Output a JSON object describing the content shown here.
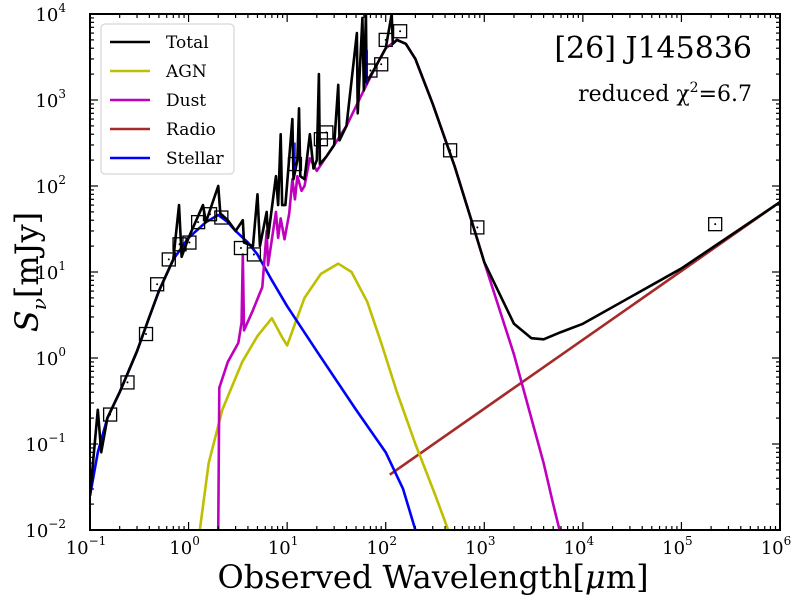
{
  "chart_data": {
    "type": "line",
    "title": "[26] J145836",
    "annotation_prefix": "reduced χ",
    "annotation_exponent": "2",
    "annotation_value": "=6.7",
    "xlabel_main": "Observed Wavelength[",
    "xlabel_mu": "μ",
    "xlabel_unit": "m]",
    "ylabel_main": "S",
    "ylabel_sub": "ν",
    "ylabel_unit": "[mJy]",
    "xscale": "log",
    "yscale": "log",
    "xlim": [
      0.1,
      1000000
    ],
    "ylim": [
      0.01,
      10000
    ],
    "legend_position": "top-left",
    "x_ticks": [
      {
        "value": 0.1,
        "base": "10",
        "exp": "−1"
      },
      {
        "value": 1,
        "base": "10",
        "exp": "0"
      },
      {
        "value": 10,
        "base": "10",
        "exp": "1"
      },
      {
        "value": 100,
        "base": "10",
        "exp": "2"
      },
      {
        "value": 1000,
        "base": "10",
        "exp": "3"
      },
      {
        "value": 10000,
        "base": "10",
        "exp": "4"
      },
      {
        "value": 100000,
        "base": "10",
        "exp": "5"
      },
      {
        "value": 1000000,
        "base": "10",
        "exp": "6"
      }
    ],
    "y_ticks": [
      {
        "value": 0.01,
        "base": "10",
        "exp": "−2"
      },
      {
        "value": 0.1,
        "base": "10",
        "exp": "−1"
      },
      {
        "value": 1,
        "base": "10",
        "exp": "0"
      },
      {
        "value": 10,
        "base": "10",
        "exp": "1"
      },
      {
        "value": 100,
        "base": "10",
        "exp": "2"
      },
      {
        "value": 1000,
        "base": "10",
        "exp": "3"
      },
      {
        "value": 10000,
        "base": "10",
        "exp": "4"
      }
    ],
    "series": [
      {
        "name": "Radio",
        "color": "#a52a2a",
        "points": [
          [
            110,
            0.044
          ],
          [
            1000000,
            65
          ]
        ]
      },
      {
        "name": "AGN",
        "color": "#bfbf00",
        "points": [
          [
            1.3,
            0.01
          ],
          [
            1.6,
            0.06
          ],
          [
            2.2,
            0.25
          ],
          [
            3.5,
            0.9
          ],
          [
            5,
            1.8
          ],
          [
            7,
            2.9
          ],
          [
            9,
            1.7
          ],
          [
            10,
            1.4
          ],
          [
            12,
            2.5
          ],
          [
            15,
            5
          ],
          [
            22,
            9.5
          ],
          [
            33,
            12.5
          ],
          [
            45,
            10
          ],
          [
            65,
            4.5
          ],
          [
            90,
            1.5
          ],
          [
            130,
            0.4
          ],
          [
            200,
            0.1
          ],
          [
            320,
            0.025
          ],
          [
            430,
            0.01
          ]
        ]
      },
      {
        "name": "Stellar",
        "color": "#0000ff",
        "points": [
          [
            0.1,
            0.025
          ],
          [
            0.12,
            0.08
          ],
          [
            0.15,
            0.2
          ],
          [
            0.2,
            0.4
          ],
          [
            0.3,
            1.2
          ],
          [
            0.4,
            3
          ],
          [
            0.5,
            6
          ],
          [
            0.7,
            14
          ],
          [
            1,
            25
          ],
          [
            1.5,
            38
          ],
          [
            2,
            46
          ],
          [
            2.5,
            38
          ],
          [
            3,
            30
          ],
          [
            4,
            22
          ],
          [
            5,
            16
          ],
          [
            7,
            8
          ],
          [
            10,
            4
          ],
          [
            20,
            1.2
          ],
          [
            50,
            0.25
          ],
          [
            100,
            0.08
          ],
          [
            150,
            0.03
          ],
          [
            200,
            0.01
          ]
        ]
      },
      {
        "name": "Dust",
        "color": "#bf00bf",
        "points": [
          [
            2,
            0.01
          ],
          [
            2.05,
            0.45
          ],
          [
            2.5,
            0.9
          ],
          [
            3.2,
            1.5
          ],
          [
            3.45,
            2.6
          ],
          [
            3.55,
            16
          ],
          [
            3.65,
            2.1
          ],
          [
            4.5,
            3.6
          ],
          [
            5.6,
            6.7
          ],
          [
            6.2,
            30
          ],
          [
            6.4,
            12
          ],
          [
            7.7,
            50
          ],
          [
            8.1,
            25
          ],
          [
            8.6,
            42
          ],
          [
            9.4,
            24
          ],
          [
            10.5,
            48
          ],
          [
            11.3,
            120
          ],
          [
            12,
            70
          ],
          [
            12.7,
            130
          ],
          [
            14,
            88
          ],
          [
            15,
            100
          ],
          [
            17,
            210
          ],
          [
            20,
            150
          ],
          [
            25,
            220
          ],
          [
            30,
            300
          ],
          [
            40,
            500
          ],
          [
            60,
            1300
          ],
          [
            80,
            2500
          ],
          [
            100,
            4000
          ],
          [
            130,
            5000
          ],
          [
            160,
            4500
          ],
          [
            200,
            3000
          ],
          [
            300,
            900
          ],
          [
            500,
            170
          ],
          [
            800,
            30
          ],
          [
            1000,
            13
          ],
          [
            2000,
            1.1
          ],
          [
            3000,
            0.2
          ],
          [
            4000,
            0.06
          ],
          [
            5000,
            0.02
          ],
          [
            5800,
            0.01
          ]
        ]
      },
      {
        "name": "Total",
        "color": "#000000",
        "points": [
          [
            0.1,
            0.025
          ],
          [
            0.12,
            0.25
          ],
          [
            0.13,
            0.08
          ],
          [
            0.15,
            0.2
          ],
          [
            0.2,
            0.4
          ],
          [
            0.3,
            1.2
          ],
          [
            0.4,
            3
          ],
          [
            0.5,
            6
          ],
          [
            0.7,
            14
          ],
          [
            0.8,
            60
          ],
          [
            0.85,
            15
          ],
          [
            1,
            25
          ],
          [
            1.4,
            60
          ],
          [
            1.5,
            38
          ],
          [
            2,
            100
          ],
          [
            2.1,
            48
          ],
          [
            2.5,
            40
          ],
          [
            3,
            30
          ],
          [
            3.55,
            40
          ],
          [
            3.65,
            22
          ],
          [
            4.5,
            20
          ],
          [
            5,
            80
          ],
          [
            5.3,
            20
          ],
          [
            6.2,
            50
          ],
          [
            6.4,
            25
          ],
          [
            7.7,
            130
          ],
          [
            8.1,
            60
          ],
          [
            8.6,
            400
          ],
          [
            8.9,
            60
          ],
          [
            9.6,
            60
          ],
          [
            11.3,
            600
          ],
          [
            11.6,
            120
          ],
          [
            12.7,
            200
          ],
          [
            13.2,
            800
          ],
          [
            13.6,
            130
          ],
          [
            15,
            120
          ],
          [
            17,
            400
          ],
          [
            18.5,
            160
          ],
          [
            20,
            200
          ],
          [
            21,
            2000
          ],
          [
            21.5,
            180
          ],
          [
            25,
            220
          ],
          [
            30,
            300
          ],
          [
            33,
            1500
          ],
          [
            34,
            340
          ],
          [
            40,
            500
          ],
          [
            51,
            6000
          ],
          [
            52,
            700
          ],
          [
            58,
            9000
          ],
          [
            60,
            1300
          ],
          [
            63,
            10000
          ],
          [
            64,
            1600
          ],
          [
            80,
            2500
          ],
          [
            100,
            4000
          ],
          [
            115,
            10000
          ],
          [
            118,
            4500
          ],
          [
            130,
            5000
          ],
          [
            160,
            4500
          ],
          [
            200,
            3000
          ],
          [
            300,
            900
          ],
          [
            500,
            170
          ],
          [
            800,
            30
          ],
          [
            1000,
            13
          ],
          [
            2000,
            2.5
          ],
          [
            3000,
            1.7
          ],
          [
            4000,
            1.65
          ],
          [
            6000,
            2
          ],
          [
            10000,
            2.5
          ],
          [
            100000,
            11
          ],
          [
            1000000,
            65
          ]
        ]
      }
    ],
    "observations": [
      [
        0.16,
        0.22
      ],
      [
        0.24,
        0.52
      ],
      [
        0.37,
        1.9
      ],
      [
        0.48,
        7.2
      ],
      [
        0.63,
        14
      ],
      [
        0.81,
        21
      ],
      [
        1.02,
        22
      ],
      [
        1.25,
        38
      ],
      [
        1.65,
        47
      ],
      [
        2.15,
        43
      ],
      [
        3.4,
        19
      ],
      [
        4.6,
        16
      ],
      [
        12,
        180
      ],
      [
        22,
        350
      ],
      [
        25,
        420
      ],
      [
        70,
        2200
      ],
      [
        90,
        2600
      ],
      [
        100,
        5000
      ],
      [
        140,
        6300
      ],
      [
        450,
        260
      ],
      [
        850,
        33
      ],
      [
        220000,
        36
      ]
    ],
    "error_bars": [
      {
        "x": 65,
        "y_low": 1500,
        "y_high": 3800
      },
      {
        "x": 12,
        "y_low": 150,
        "y_high": 320
      }
    ]
  }
}
